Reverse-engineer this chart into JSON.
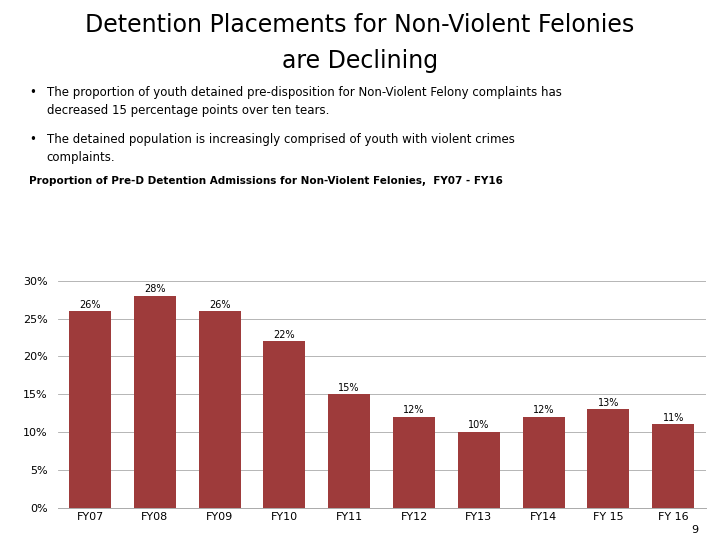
{
  "title_line1": "Detention Placements for Non-Violent Felonies",
  "title_line2": "are Declining",
  "bullet1_line1": "The proportion of youth detained pre-disposition for Non-Violent Felony complaints has",
  "bullet1_line2": "decreased 15 percentage points over ten tears.",
  "bullet2_line1": "The detained population is increasingly comprised of youth with violent crimes",
  "bullet2_line2": "complaints.",
  "subtitle": "Proportion of Pre-D Detention Admissions for Non-Violent Felonies,  FY07 - FY16",
  "categories": [
    "FY07",
    "FY08",
    "FY09",
    "FY10",
    "FY11",
    "FY12",
    "FY13",
    "FY14",
    "FY 15",
    "FY 16"
  ],
  "values": [
    0.26,
    0.28,
    0.26,
    0.22,
    0.15,
    0.12,
    0.1,
    0.12,
    0.13,
    0.11
  ],
  "labels": [
    "26%",
    "28%",
    "26%",
    "22%",
    "15%",
    "12%",
    "10%",
    "12%",
    "13%",
    "11%"
  ],
  "bar_color": "#9e3b3b",
  "background_color": "#ffffff",
  "ylim": [
    0,
    0.3
  ],
  "yticks": [
    0.0,
    0.05,
    0.1,
    0.15,
    0.2,
    0.25,
    0.3
  ],
  "ytick_labels": [
    "0%",
    "5%",
    "10%",
    "15%",
    "20%",
    "25%",
    "30%"
  ],
  "page_number": "9",
  "title_fontsize": 17,
  "subtitle_fontsize": 7.5,
  "bullet_fontsize": 8.5,
  "bar_label_fontsize": 7,
  "tick_fontsize": 8
}
